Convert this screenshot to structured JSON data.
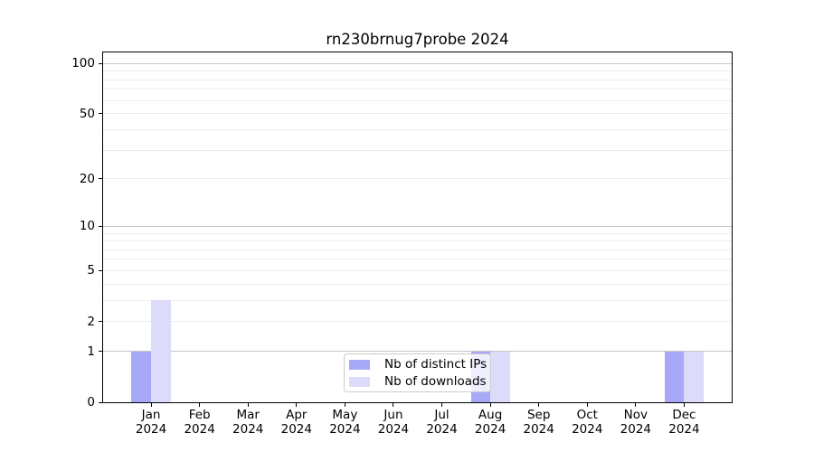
{
  "chart_data": {
    "type": "bar",
    "title": "rn230brnug7probe 2024",
    "categories": [
      "Jan",
      "Feb",
      "Mar",
      "Apr",
      "May",
      "Jun",
      "Jul",
      "Aug",
      "Sep",
      "Oct",
      "Nov",
      "Dec"
    ],
    "x_tick_year": "2024",
    "series": [
      {
        "name": "Nb of distinct IPs",
        "color": "#a8a8f8",
        "values": [
          1,
          0,
          0,
          0,
          0,
          0,
          0,
          1,
          0,
          0,
          0,
          1
        ]
      },
      {
        "name": "Nb of downloads",
        "color": "#dcdcfa",
        "values": [
          3,
          0,
          0,
          0,
          0,
          0,
          0,
          1,
          0,
          0,
          0,
          1
        ]
      }
    ],
    "y_axis": {
      "scale": "log1p",
      "tick_values": [
        0,
        1,
        2,
        5,
        10,
        20,
        50,
        100
      ],
      "tick_labels": [
        "0",
        "1",
        "2",
        "5",
        "10",
        "20",
        "50",
        "100"
      ],
      "major_gridlines": [
        1,
        10,
        100
      ],
      "minor_gridlines": [
        2,
        3,
        4,
        5,
        6,
        7,
        8,
        9,
        20,
        30,
        40,
        50,
        60,
        70,
        80,
        90
      ],
      "ylim": [
        0,
        116
      ]
    },
    "legend_position": "lower center inside",
    "grid": "horizontal",
    "colors": {
      "bar_distinct_ips": "#a8a8f8",
      "bar_downloads": "#dcdcfa",
      "major_grid": "#c6c6c6",
      "minor_grid": "#ececec",
      "axis": "#000000",
      "legend_border": "#cccccc",
      "background": "#ffffff",
      "text": "#000000"
    }
  }
}
